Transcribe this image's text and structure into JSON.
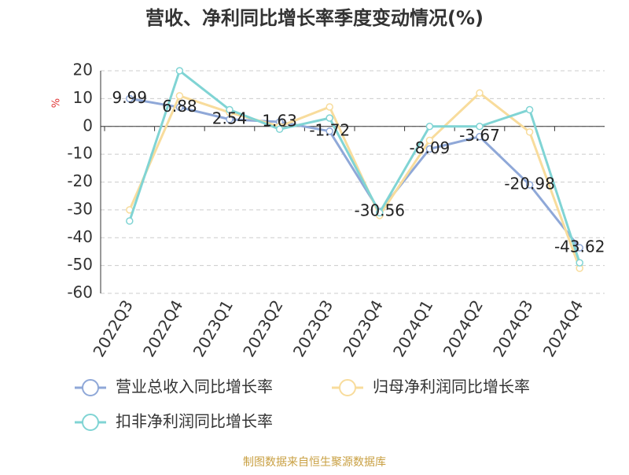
{
  "chart_data": {
    "type": "line",
    "title": "营收、净利同比增长率季度变动情况(%)",
    "y_label": "%",
    "categories": [
      "2022Q3",
      "2022Q4",
      "2023Q1",
      "2023Q2",
      "2023Q3",
      "2023Q4",
      "2024Q1",
      "2024Q2",
      "2024Q3",
      "2024Q4"
    ],
    "series": [
      {
        "name": "营业总收入同比增长率",
        "color": "#8fa8d8",
        "values": [
          9.99,
          6.88,
          2.54,
          1.63,
          -1.72,
          -30.56,
          -8.09,
          -3.67,
          -20.98,
          -43.62
        ]
      },
      {
        "name": "归母净利润同比增长率",
        "color": "#f8dc9c",
        "values": [
          -30,
          11,
          5,
          0,
          7,
          -32,
          -5,
          12,
          -2,
          -51
        ]
      },
      {
        "name": "扣非净利润同比增长率",
        "color": "#80d4d4",
        "values": [
          -34,
          20,
          6,
          -1,
          3,
          -31,
          0,
          0,
          6,
          -49
        ]
      }
    ],
    "ylim": [
      -60,
      20
    ],
    "yticks": [
      -60,
      -50,
      -40,
      -30,
      -20,
      -10,
      0,
      10,
      20
    ],
    "grid": true,
    "source": "制图数据来自恒生聚源数据库"
  }
}
